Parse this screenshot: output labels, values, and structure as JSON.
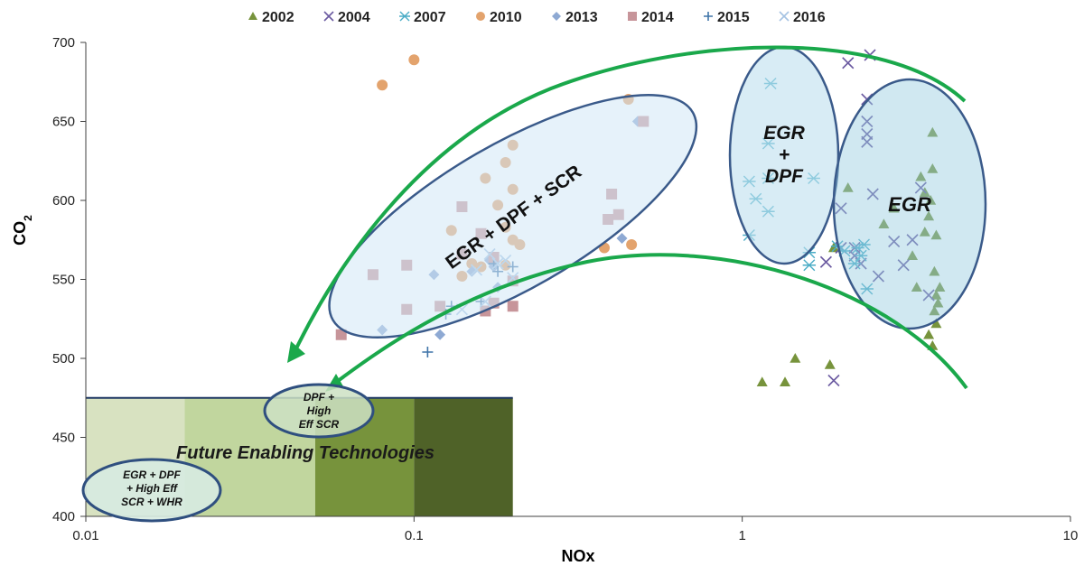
{
  "chart_data": {
    "type": "scatter",
    "xlabel": "NOx",
    "ylabel": "CO",
    "ylabel_sub": "2",
    "xscale": "log",
    "xlim": [
      0.01,
      10
    ],
    "ylim": [
      400,
      700
    ],
    "xticks": [
      0.01,
      0.1,
      1,
      10
    ],
    "xtick_labels": [
      "0.01",
      "0.1",
      "1",
      "10"
    ],
    "yticks": [
      400,
      450,
      500,
      550,
      600,
      650,
      700
    ],
    "ytick_labels": [
      "400",
      "450",
      "500",
      "550",
      "600",
      "650",
      "700"
    ],
    "legend_position": "top",
    "series": [
      {
        "name": "2002",
        "marker": "triangle",
        "color": "#77933c",
        "points": [
          [
            1.15,
            485
          ],
          [
            1.35,
            485
          ],
          [
            1.45,
            500
          ],
          [
            1.85,
            496
          ],
          [
            1.9,
            570
          ],
          [
            2.1,
            608
          ],
          [
            2.7,
            585
          ],
          [
            2.9,
            595
          ],
          [
            3.3,
            565
          ],
          [
            3.4,
            545
          ],
          [
            3.5,
            615
          ],
          [
            3.6,
            580
          ],
          [
            3.7,
            590
          ],
          [
            3.75,
            600
          ],
          [
            3.8,
            643
          ],
          [
            3.8,
            620
          ],
          [
            3.85,
            555
          ],
          [
            3.9,
            540
          ],
          [
            3.9,
            578
          ],
          [
            3.95,
            535
          ],
          [
            3.7,
            515
          ],
          [
            3.8,
            508
          ],
          [
            3.9,
            522
          ],
          [
            4.0,
            545
          ],
          [
            3.6,
            605
          ],
          [
            3.85,
            530
          ]
        ]
      },
      {
        "name": "2004",
        "marker": "x",
        "color": "#6b5aa1",
        "points": [
          [
            2.1,
            687
          ],
          [
            2.45,
            692
          ],
          [
            2.4,
            664
          ],
          [
            2.4,
            650
          ],
          [
            2.4,
            642
          ],
          [
            2.4,
            637
          ],
          [
            1.9,
            486
          ],
          [
            1.8,
            561
          ],
          [
            2.0,
            570
          ],
          [
            2.2,
            565
          ],
          [
            2.3,
            560
          ],
          [
            2.5,
            604
          ],
          [
            2.6,
            552
          ],
          [
            2.9,
            574
          ],
          [
            3.1,
            559
          ],
          [
            3.3,
            575
          ],
          [
            3.5,
            608
          ],
          [
            3.7,
            540
          ],
          [
            2.0,
            595
          ],
          [
            2.2,
            570
          ]
        ]
      },
      {
        "name": "2007",
        "marker": "star",
        "color": "#4aacc6",
        "points": [
          [
            1.22,
            674
          ],
          [
            1.2,
            636
          ],
          [
            1.2,
            614
          ],
          [
            1.05,
            612
          ],
          [
            1.1,
            601
          ],
          [
            1.2,
            593
          ],
          [
            1.05,
            578
          ],
          [
            1.65,
            614
          ],
          [
            1.6,
            559
          ],
          [
            1.6,
            567
          ],
          [
            1.95,
            571
          ],
          [
            2.05,
            568
          ],
          [
            2.2,
            560
          ],
          [
            2.3,
            565
          ],
          [
            2.35,
            572
          ],
          [
            2.4,
            544
          ],
          [
            2.25,
            570
          ]
        ]
      },
      {
        "name": "2010",
        "marker": "circle",
        "color": "#e3a36d",
        "points": [
          [
            0.08,
            673
          ],
          [
            0.1,
            689
          ],
          [
            0.45,
            664
          ],
          [
            0.2,
            635
          ],
          [
            0.19,
            624
          ],
          [
            0.165,
            614
          ],
          [
            0.2,
            607
          ],
          [
            0.18,
            597
          ],
          [
            0.13,
            581
          ],
          [
            0.19,
            583
          ],
          [
            0.2,
            575
          ],
          [
            0.21,
            572
          ],
          [
            0.15,
            560
          ],
          [
            0.16,
            558
          ],
          [
            0.19,
            559
          ],
          [
            0.14,
            552
          ],
          [
            0.38,
            570
          ],
          [
            0.46,
            572
          ]
        ]
      },
      {
        "name": "2013",
        "marker": "diamond",
        "color": "#8ea9d3",
        "points": [
          [
            0.08,
            518
          ],
          [
            0.12,
            515
          ],
          [
            0.115,
            553
          ],
          [
            0.15,
            555
          ],
          [
            0.17,
            562
          ],
          [
            0.175,
            558
          ],
          [
            0.18,
            545
          ],
          [
            0.2,
            533
          ],
          [
            0.43,
            576
          ],
          [
            0.48,
            650
          ]
        ]
      },
      {
        "name": "2014",
        "marker": "square",
        "color": "#c7959a",
        "points": [
          [
            0.06,
            515
          ],
          [
            0.075,
            553
          ],
          [
            0.095,
            559
          ],
          [
            0.095,
            531
          ],
          [
            0.12,
            533
          ],
          [
            0.14,
            566
          ],
          [
            0.14,
            596
          ],
          [
            0.16,
            579
          ],
          [
            0.165,
            530
          ],
          [
            0.175,
            535
          ],
          [
            0.175,
            564
          ],
          [
            0.2,
            549
          ],
          [
            0.2,
            533
          ],
          [
            0.4,
            604
          ],
          [
            0.39,
            588
          ],
          [
            0.42,
            591
          ],
          [
            0.5,
            650
          ]
        ]
      },
      {
        "name": "2015",
        "marker": "plus",
        "color": "#3f74a8",
        "points": [
          [
            0.11,
            504
          ],
          [
            0.125,
            528
          ],
          [
            0.13,
            533
          ],
          [
            0.16,
            536
          ],
          [
            0.175,
            560
          ],
          [
            0.18,
            555
          ],
          [
            0.2,
            558
          ]
        ]
      },
      {
        "name": "2016",
        "marker": "x",
        "color": "#a5c3e3",
        "points": [
          [
            0.14,
            531
          ],
          [
            0.155,
            556
          ],
          [
            0.165,
            536
          ],
          [
            0.17,
            566
          ],
          [
            0.18,
            560
          ],
          [
            0.2,
            551
          ],
          [
            0.19,
            562
          ]
        ]
      }
    ],
    "regions": [
      {
        "label": "EGR + DPF + SCR"
      },
      {
        "label_lines": [
          "EGR",
          "+",
          "DPF"
        ]
      },
      {
        "label": "EGR"
      }
    ],
    "bands": {
      "label": "Future Enabling Technologies",
      "ceiling": 475,
      "segments": [
        {
          "from": 0.01,
          "to": 0.02,
          "color": "#d8e2c1"
        },
        {
          "from": 0.02,
          "to": 0.05,
          "color": "#c1d69e"
        },
        {
          "from": 0.05,
          "to": 0.1,
          "color": "#77933c"
        },
        {
          "from": 0.1,
          "to": 0.2,
          "color": "#4f6228"
        }
      ]
    },
    "callouts": [
      {
        "label_lines": [
          "DPF +",
          "High",
          "Eff SCR"
        ]
      },
      {
        "label_lines": [
          "EGR + DPF",
          "+ High Eff",
          "SCR + WHR"
        ]
      }
    ],
    "arrow_color": "#1aa84b"
  }
}
